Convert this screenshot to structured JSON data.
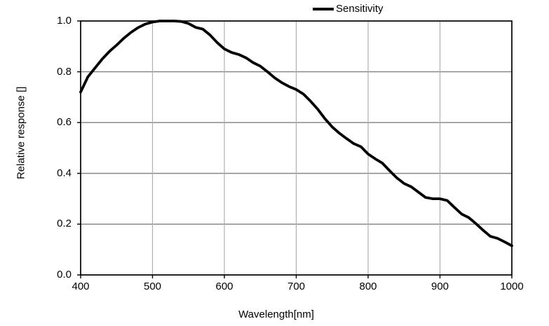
{
  "chart_data": {
    "type": "line",
    "title": "",
    "xlabel": "Wavelength[nm]",
    "ylabel": "Relative response []",
    "xlim": [
      400,
      1000
    ],
    "ylim": [
      0.0,
      1.0
    ],
    "grid": true,
    "legend_position": "top-center",
    "x": [
      400,
      410,
      420,
      430,
      440,
      450,
      460,
      470,
      480,
      490,
      500,
      510,
      520,
      530,
      540,
      550,
      560,
      570,
      580,
      590,
      600,
      610,
      620,
      630,
      640,
      650,
      660,
      670,
      680,
      690,
      700,
      710,
      720,
      730,
      740,
      750,
      760,
      770,
      780,
      790,
      800,
      810,
      820,
      830,
      840,
      850,
      860,
      870,
      880,
      890,
      900,
      910,
      920,
      930,
      940,
      950,
      960,
      970,
      980,
      990,
      1000
    ],
    "series": [
      {
        "name": "Sensitivity",
        "color": "#000000",
        "values": [
          0.72,
          0.78,
          0.815,
          0.85,
          0.88,
          0.905,
          0.932,
          0.955,
          0.974,
          0.988,
          0.996,
          1.0,
          1.0,
          1.0,
          0.998,
          0.99,
          0.975,
          0.968,
          0.945,
          0.915,
          0.89,
          0.876,
          0.868,
          0.855,
          0.836,
          0.822,
          0.8,
          0.776,
          0.757,
          0.742,
          0.73,
          0.712,
          0.684,
          0.652,
          0.615,
          0.583,
          0.558,
          0.537,
          0.517,
          0.505,
          0.476,
          0.457,
          0.44,
          0.41,
          0.382,
          0.36,
          0.347,
          0.326,
          0.305,
          0.3,
          0.3,
          0.293,
          0.266,
          0.24,
          0.226,
          0.202,
          0.176,
          0.152,
          0.144,
          0.13,
          0.115
        ]
      }
    ],
    "xticks": [
      {
        "value": 400,
        "label": "400"
      },
      {
        "value": 500,
        "label": "500"
      },
      {
        "value": 600,
        "label": "600"
      },
      {
        "value": 700,
        "label": "700"
      },
      {
        "value": 800,
        "label": "800"
      },
      {
        "value": 900,
        "label": "900"
      },
      {
        "value": 1000,
        "label": "1000"
      }
    ],
    "yticks": [
      {
        "value": 0.0,
        "label": "0.0"
      },
      {
        "value": 0.2,
        "label": "0.2"
      },
      {
        "value": 0.4,
        "label": "0.4"
      },
      {
        "value": 0.6,
        "label": "0.6"
      },
      {
        "value": 0.8,
        "label": "0.8"
      },
      {
        "value": 1.0,
        "label": "1.0"
      }
    ],
    "colors": {
      "background": "#ffffff",
      "frame": "#000000",
      "grid_horizontal": "#808080",
      "grid_vertical": "#b0b0b0",
      "text": "#000000"
    }
  }
}
